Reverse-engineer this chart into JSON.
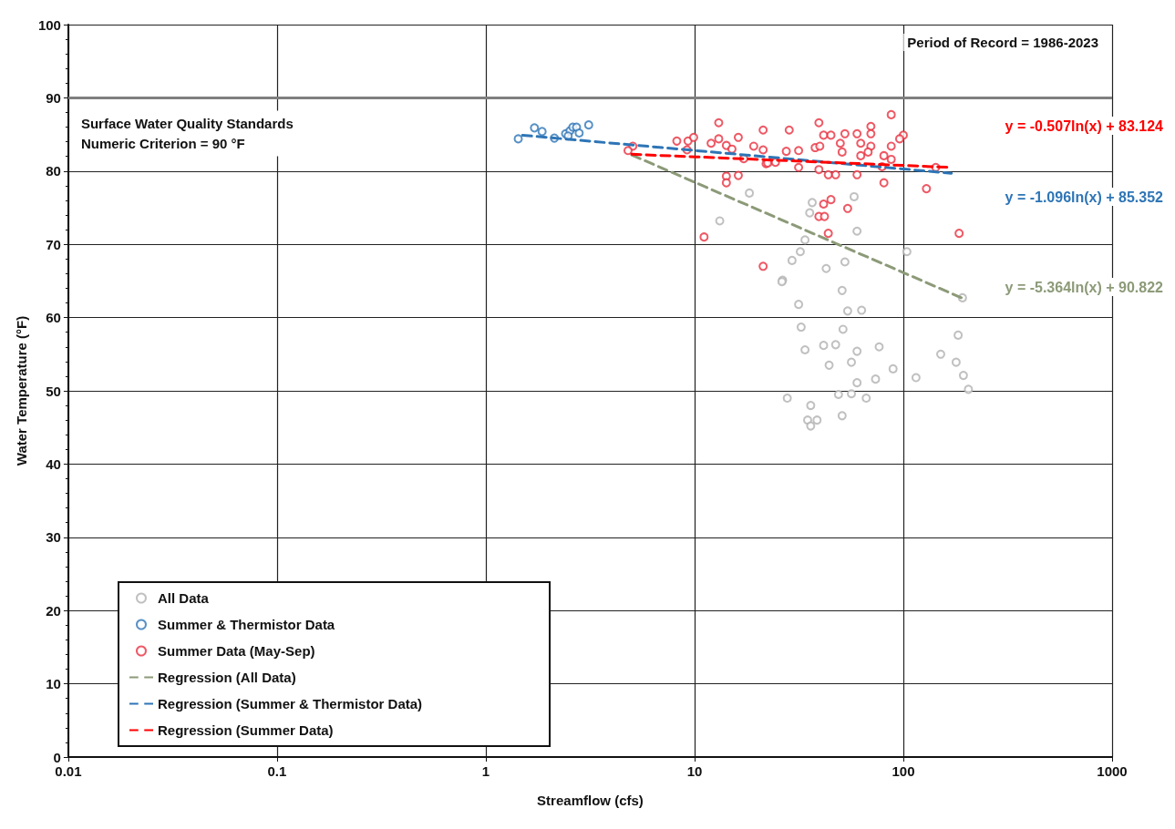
{
  "chart_data": {
    "type": "scatter",
    "xlabel": "Streamflow (cfs)",
    "ylabel": "Water Temperature (°F)",
    "log": "x",
    "xlim": [
      0.01,
      1000
    ],
    "xticks": [
      0.01,
      0.1,
      1,
      10,
      100,
      1000
    ],
    "ylim": [
      0,
      100
    ],
    "yticks": [
      0,
      10,
      20,
      30,
      40,
      50,
      60,
      70,
      80,
      90,
      100
    ],
    "grid": true,
    "legend": "bottom left",
    "marker": "circle",
    "ref_lines": [
      {
        "axis": "y",
        "value": 90,
        "label": "Surface Water Quality Standards\nNumeric Criterion = 90 °F",
        "color": "#7f7f7f"
      }
    ],
    "annotations": [
      "Period of Record = 1986-2023",
      "y = -0.507ln(x) + 83.124",
      "y = -1.096ln(x) + 85.352",
      "y = -5.364ln(x) + 90.822"
    ],
    "series": [
      {
        "name": "All Data",
        "color": "#b0b0b0",
        "x": [
          13.2,
          18.3,
          36.6,
          35.6,
          58.1,
          33.8,
          29.3,
          32.1,
          26.4,
          26.2,
          60,
          50.9,
          31.5,
          54.1,
          63.1,
          32.4,
          51.4,
          33.8,
          41.5,
          47.4,
          60,
          56.4,
          44.1,
          89.3,
          115,
          151,
          179,
          194,
          205,
          60,
          56.4,
          66.4,
          73.6,
          27.8,
          36,
          48.9,
          34.8,
          38.6,
          36,
          50.9,
          104,
          192,
          52.5,
          42.7,
          76.6,
          183
        ],
        "values": [
          73.2,
          77,
          75.7,
          74.3,
          76.5,
          70.6,
          67.8,
          69,
          65.1,
          64.9,
          71.8,
          63.7,
          61.8,
          60.9,
          61,
          58.7,
          58.4,
          55.6,
          56.2,
          56.3,
          55.4,
          53.9,
          53.5,
          53,
          51.8,
          55,
          53.9,
          52.1,
          50.2,
          51.1,
          49.6,
          49,
          51.6,
          49,
          48,
          49.5,
          46,
          46,
          45.2,
          46.6,
          69,
          62.7,
          67.6,
          66.7,
          56,
          57.6
        ]
      },
      {
        "name": "Summer & Thermistor Data",
        "color": "#2e75b6",
        "x": [
          1.43,
          1.71,
          1.86,
          2.13,
          2.41,
          2.53,
          2.61,
          2.72,
          2.8,
          3.11,
          2.48
        ],
        "values": [
          84.4,
          85.9,
          85.4,
          84.5,
          85.1,
          85.5,
          86,
          86,
          85.2,
          86.3,
          84.8
        ]
      },
      {
        "name": "Summer Data (May-Sep)",
        "color": "#e8303f",
        "x": [
          13.05,
          8.22,
          9.3,
          9.9,
          12,
          13.05,
          14.2,
          16.2,
          15.1,
          19.2,
          21.3,
          21.3,
          22,
          5.06,
          4.8,
          9.2,
          17.2,
          14.2,
          14.2,
          16.2,
          11.1,
          21.3,
          87.5,
          39.4,
          28.4,
          41.5,
          45,
          52.5,
          60,
          69.9,
          69.9,
          100,
          96,
          27.5,
          31.5,
          37.8,
          39.8,
          49.9,
          50.9,
          62.5,
          69.9,
          67.8,
          62.5,
          87.5,
          80.7,
          87.5,
          22.4,
          24.4,
          31.5,
          39.4,
          43.7,
          47.4,
          60,
          80.7,
          79.1,
          143,
          129,
          45,
          41.5,
          54.1,
          39.4,
          41.9,
          43.7,
          185
        ],
        "values": [
          86.6,
          84.1,
          84.1,
          84.6,
          83.8,
          84.4,
          83.5,
          84.6,
          83,
          83.4,
          85.6,
          82.9,
          81,
          83.4,
          82.8,
          82.9,
          81.7,
          79.3,
          78.4,
          79.4,
          71,
          67,
          87.7,
          86.6,
          85.6,
          84.9,
          84.9,
          85.1,
          85.1,
          86.1,
          85.1,
          84.9,
          84.4,
          82.7,
          82.8,
          83.2,
          83.4,
          83.8,
          82.6,
          83.8,
          83.4,
          82.6,
          82.1,
          83.4,
          82.1,
          81.6,
          81.1,
          81.2,
          80.5,
          80.2,
          79.5,
          79.5,
          79.5,
          78.4,
          80.6,
          80.5,
          77.6,
          76.1,
          75.5,
          74.9,
          73.8,
          73.8,
          71.5,
          71.5
        ]
      },
      {
        "name": "Regression (All Data)",
        "type": "line",
        "line_style": "dashed",
        "marker": "none",
        "color": "#8c9a78",
        "x": [
          5,
          190
        ],
        "values": [
          82.2,
          62.7
        ]
      },
      {
        "name": "Regression (Summer & Thermistor Data)",
        "type": "line",
        "line_style": "dashed",
        "marker": "none",
        "color": "#2e75b6",
        "x": [
          1.5,
          170
        ],
        "values": [
          84.9,
          79.7
        ]
      },
      {
        "name": "Regression (Summer Data)",
        "type": "line",
        "line_style": "dashed",
        "marker": "none",
        "color": "#ff0000",
        "x": [
          5,
          170
        ],
        "values": [
          82.3,
          80.5
        ]
      }
    ]
  }
}
